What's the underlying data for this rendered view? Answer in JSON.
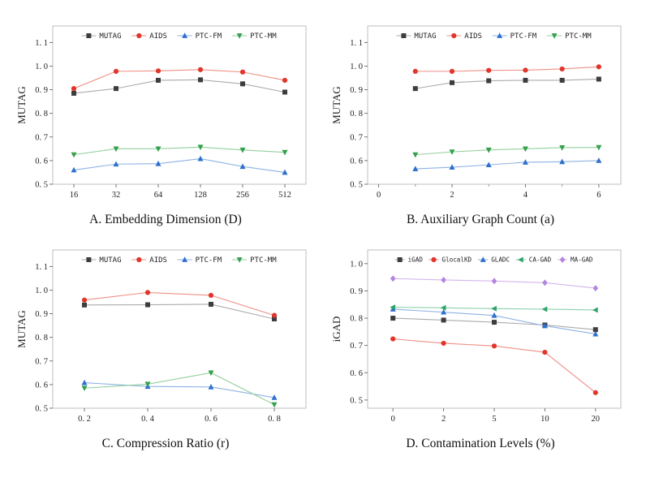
{
  "page": {
    "background": "#ffffff"
  },
  "chart_data": [
    {
      "type": "line",
      "title": "A. Embedding Dimension (D)",
      "ylabel": "MUTAG",
      "legend_position": "top",
      "x": [
        0,
        1,
        2,
        3,
        4,
        5
      ],
      "x_range": [
        -0.5,
        5.5
      ],
      "x_ticks": [
        {
          "v": 0,
          "label": "16"
        },
        {
          "v": 1,
          "label": "32"
        },
        {
          "v": 2,
          "label": "64"
        },
        {
          "v": 3,
          "label": "128"
        },
        {
          "v": 4,
          "label": "256"
        },
        {
          "v": 5,
          "label": "512"
        }
      ],
      "y_range": [
        0.5,
        1.17
      ],
      "y_ticks": [
        {
          "v": 0.5,
          "label": "0. 5"
        },
        {
          "v": 0.6,
          "label": "0. 6"
        },
        {
          "v": 0.7,
          "label": "0. 7"
        },
        {
          "v": 0.8,
          "label": "0. 8"
        },
        {
          "v": 0.9,
          "label": "0. 9"
        },
        {
          "v": 1.0,
          "label": "1. 0"
        },
        {
          "v": 1.1,
          "label": "1. 1"
        }
      ],
      "series": [
        {
          "name": "MUTAG",
          "marker": "square",
          "color": "#3d3d3d",
          "line_color": "#ababab",
          "values": [
            0.885,
            0.905,
            0.94,
            0.942,
            0.925,
            0.89
          ]
        },
        {
          "name": "AIDS",
          "marker": "circle",
          "color": "#e0362c",
          "line_color": "#ef8f86",
          "values": [
            0.905,
            0.978,
            0.98,
            0.985,
            0.975,
            0.94
          ]
        },
        {
          "name": "PTC-FM",
          "marker": "triangle-up",
          "color": "#2e6fce",
          "line_color": "#8fb2e4",
          "values": [
            0.56,
            0.585,
            0.587,
            0.608,
            0.575,
            0.55
          ]
        },
        {
          "name": "PTC-MM",
          "marker": "triangle-down",
          "color": "#33a04a",
          "line_color": "#93cf9e",
          "values": [
            0.625,
            0.65,
            0.65,
            0.657,
            0.645,
            0.635
          ]
        }
      ]
    },
    {
      "type": "line",
      "title": "B. Auxiliary Graph Count (a)",
      "ylabel": "MUTAG",
      "legend_position": "top",
      "x": [
        1,
        2,
        3,
        4,
        5,
        6
      ],
      "x_range": [
        -0.3,
        6.6
      ],
      "x_ticks": [
        {
          "v": 0,
          "label": "0"
        },
        {
          "v": 2,
          "label": "2"
        },
        {
          "v": 4,
          "label": "4"
        },
        {
          "v": 6,
          "label": "6"
        }
      ],
      "x_minor": [
        1,
        3,
        5
      ],
      "y_range": [
        0.5,
        1.17
      ],
      "y_ticks": [
        {
          "v": 0.5,
          "label": "0. 5"
        },
        {
          "v": 0.6,
          "label": "0. 6"
        },
        {
          "v": 0.7,
          "label": "0. 7"
        },
        {
          "v": 0.8,
          "label": "0. 8"
        },
        {
          "v": 0.9,
          "label": "0. 9"
        },
        {
          "v": 1.0,
          "label": "1. 0"
        },
        {
          "v": 1.1,
          "label": "1. 1"
        }
      ],
      "series": [
        {
          "name": "MUTAG",
          "marker": "square",
          "color": "#3d3d3d",
          "line_color": "#ababab",
          "values": [
            0.905,
            0.93,
            0.938,
            0.94,
            0.94,
            0.945
          ]
        },
        {
          "name": "AIDS",
          "marker": "circle",
          "color": "#e0362c",
          "line_color": "#ef8f86",
          "values": [
            0.978,
            0.978,
            0.982,
            0.983,
            0.988,
            0.997
          ]
        },
        {
          "name": "PTC-FM",
          "marker": "triangle-up",
          "color": "#2e6fce",
          "line_color": "#8fb2e4",
          "values": [
            0.565,
            0.572,
            0.582,
            0.593,
            0.595,
            0.6
          ]
        },
        {
          "name": "PTC-MM",
          "marker": "triangle-down",
          "color": "#33a04a",
          "line_color": "#93cf9e",
          "values": [
            0.625,
            0.637,
            0.645,
            0.65,
            0.655,
            0.656
          ]
        }
      ]
    },
    {
      "type": "line",
      "title": "C. Compression Ratio (r)",
      "ylabel": "MUTAG",
      "legend_position": "top",
      "x": [
        0.2,
        0.4,
        0.6,
        0.8
      ],
      "x_range": [
        0.1,
        0.9
      ],
      "x_ticks": [
        {
          "v": 0.2,
          "label": "0. 2"
        },
        {
          "v": 0.4,
          "label": "0. 4"
        },
        {
          "v": 0.6,
          "label": "0. 6"
        },
        {
          "v": 0.8,
          "label": "0. 8"
        }
      ],
      "y_range": [
        0.5,
        1.17
      ],
      "y_ticks": [
        {
          "v": 0.5,
          "label": "0. 5"
        },
        {
          "v": 0.6,
          "label": "0. 6"
        },
        {
          "v": 0.7,
          "label": "0. 7"
        },
        {
          "v": 0.8,
          "label": "0. 8"
        },
        {
          "v": 0.9,
          "label": "0. 9"
        },
        {
          "v": 1.0,
          "label": "1. 0"
        },
        {
          "v": 1.1,
          "label": "1. 1"
        }
      ],
      "series": [
        {
          "name": "MUTAG",
          "marker": "square",
          "color": "#3d3d3d",
          "line_color": "#ababab",
          "values": [
            0.937,
            0.938,
            0.94,
            0.878
          ]
        },
        {
          "name": "AIDS",
          "marker": "circle",
          "color": "#e0362c",
          "line_color": "#ef8f86",
          "values": [
            0.958,
            0.99,
            0.978,
            0.893
          ]
        },
        {
          "name": "PTC-FM",
          "marker": "triangle-up",
          "color": "#2e6fce",
          "line_color": "#8fb2e4",
          "values": [
            0.608,
            0.592,
            0.59,
            0.545
          ]
        },
        {
          "name": "PTC-MM",
          "marker": "triangle-down",
          "color": "#33a04a",
          "line_color": "#93cf9e",
          "values": [
            0.585,
            0.602,
            0.65,
            0.515
          ]
        }
      ]
    },
    {
      "type": "line",
      "title": "D. Contamination Levels (%)",
      "ylabel": "iGAD",
      "legend_position": "top",
      "x": [
        0,
        1,
        2,
        3,
        4
      ],
      "x_range": [
        -0.5,
        4.5
      ],
      "x_ticks": [
        {
          "v": 0,
          "label": "0"
        },
        {
          "v": 1,
          "label": "2"
        },
        {
          "v": 2,
          "label": "5"
        },
        {
          "v": 3,
          "label": "10"
        },
        {
          "v": 4,
          "label": "20"
        }
      ],
      "y_range": [
        0.47,
        1.05
      ],
      "y_ticks": [
        {
          "v": 0.5,
          "label": "0. 5"
        },
        {
          "v": 0.6,
          "label": "0. 6"
        },
        {
          "v": 0.7,
          "label": "0. 7"
        },
        {
          "v": 0.8,
          "label": "0. 8"
        },
        {
          "v": 0.9,
          "label": "0. 9"
        },
        {
          "v": 1.0,
          "label": "1. 0"
        }
      ],
      "series": [
        {
          "name": "iGAD",
          "marker": "square",
          "color": "#3d3d3d",
          "line_color": "#ababab",
          "values": [
            0.8,
            0.793,
            0.785,
            0.775,
            0.758
          ]
        },
        {
          "name": "GlocalKD",
          "marker": "circle",
          "color": "#e0362c",
          "line_color": "#ef8f86",
          "values": [
            0.724,
            0.708,
            0.698,
            0.675,
            0.527
          ]
        },
        {
          "name": "GLADC",
          "marker": "triangle-up",
          "color": "#2e6fce",
          "line_color": "#8fb2e4",
          "values": [
            0.833,
            0.822,
            0.81,
            0.772,
            0.742
          ]
        },
        {
          "name": "CA-GAD",
          "marker": "triangle-left",
          "color": "#2fa36b",
          "line_color": "#8fd0b0",
          "values": [
            0.84,
            0.838,
            0.835,
            0.833,
            0.83
          ]
        },
        {
          "name": "MA-GAD",
          "marker": "diamond",
          "color": "#b583e0",
          "line_color": "#d3b6ee",
          "values": [
            0.945,
            0.94,
            0.936,
            0.93,
            0.91
          ]
        }
      ]
    }
  ]
}
